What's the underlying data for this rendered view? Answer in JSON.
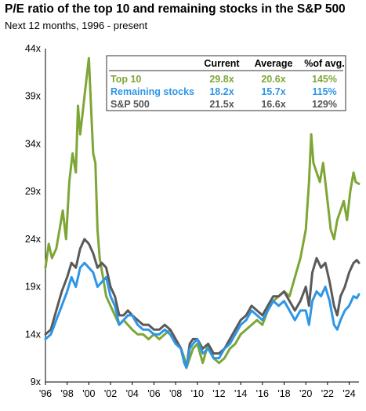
{
  "chart_data": {
    "type": "line",
    "title": "P/E ratio of the top 10 and remaining stocks in the S&P 500",
    "subtitle": "Next 12 months, 1996 - present",
    "xlabel": "",
    "ylabel": "",
    "xlim": [
      1996,
      2024.9
    ],
    "ylim": [
      9,
      44
    ],
    "y_ticks": [
      9,
      14,
      19,
      24,
      29,
      34,
      39,
      44
    ],
    "y_tick_labels": [
      "9x",
      "14x",
      "19x",
      "24x",
      "29x",
      "34x",
      "39x",
      "44x"
    ],
    "x_ticks": [
      1996,
      1998,
      2000,
      2002,
      2004,
      2006,
      2008,
      2010,
      2012,
      2014,
      2016,
      2018,
      2020,
      2022,
      2024
    ],
    "x_tick_labels": [
      "'96",
      "'98",
      "'00",
      "'02",
      "'04",
      "'06",
      "'08",
      "'10",
      "'12",
      "'14",
      "'16",
      "'18",
      "'20",
      "'22",
      "'24"
    ],
    "grid": false,
    "series": [
      {
        "name": "Top 10",
        "color": "#7ea636",
        "x": [
          1996.0,
          1996.3,
          1996.6,
          1997.0,
          1997.3,
          1997.6,
          1997.9,
          1998.2,
          1998.5,
          1998.8,
          1999.0,
          1999.2,
          1999.4,
          1999.6,
          1999.8,
          2000.0,
          2000.2,
          2000.4,
          2000.6,
          2000.8,
          2001.0,
          2001.3,
          2001.6,
          2002.0,
          2002.4,
          2002.8,
          2003.2,
          2003.6,
          2004.0,
          2004.5,
          2005.0,
          2005.5,
          2006.0,
          2006.5,
          2007.0,
          2007.5,
          2008.0,
          2008.5,
          2008.8,
          2009.0,
          2009.3,
          2009.6,
          2010.0,
          2010.5,
          2011.0,
          2011.5,
          2012.0,
          2012.5,
          2013.0,
          2013.5,
          2014.0,
          2014.5,
          2015.0,
          2015.5,
          2016.0,
          2016.5,
          2017.0,
          2017.5,
          2018.0,
          2018.5,
          2019.0,
          2019.5,
          2020.0,
          2020.3,
          2020.5,
          2020.7,
          2021.0,
          2021.3,
          2021.6,
          2022.0,
          2022.3,
          2022.6,
          2022.9,
          2023.2,
          2023.5,
          2023.8,
          2024.1,
          2024.4,
          2024.6,
          2024.9
        ],
        "values": [
          21.0,
          23.5,
          22.0,
          23.0,
          25.0,
          27.0,
          24.0,
          30.0,
          33.0,
          31.0,
          38.0,
          35.0,
          37.0,
          39.0,
          41.0,
          43.0,
          38.0,
          33.0,
          32.0,
          25.0,
          22.0,
          20.0,
          18.0,
          17.0,
          16.0,
          15.0,
          15.5,
          15.0,
          14.5,
          14.0,
          14.0,
          13.5,
          14.0,
          13.5,
          14.0,
          14.5,
          13.5,
          12.5,
          11.5,
          10.5,
          11.5,
          12.5,
          13.0,
          11.0,
          13.0,
          11.5,
          11.0,
          11.5,
          12.5,
          13.0,
          14.0,
          14.5,
          15.0,
          15.5,
          15.0,
          16.5,
          17.5,
          18.0,
          18.5,
          18.0,
          20.0,
          22.0,
          25.0,
          30.0,
          35.0,
          32.0,
          31.0,
          30.0,
          32.0,
          28.0,
          25.0,
          24.0,
          26.0,
          27.0,
          28.0,
          26.0,
          29.0,
          31.0,
          30.0,
          29.8
        ]
      },
      {
        "name": "Remaining stocks",
        "color": "#2e96e6",
        "x": [
          1996.0,
          1996.5,
          1997.0,
          1997.5,
          1998.0,
          1998.4,
          1998.8,
          1999.2,
          1999.6,
          2000.0,
          2000.4,
          2000.8,
          2001.2,
          2001.6,
          2002.0,
          2002.4,
          2002.8,
          2003.2,
          2003.6,
          2004.0,
          2004.5,
          2005.0,
          2005.5,
          2006.0,
          2006.5,
          2007.0,
          2007.5,
          2008.0,
          2008.5,
          2008.8,
          2009.0,
          2009.3,
          2009.6,
          2010.0,
          2010.5,
          2011.0,
          2011.5,
          2012.0,
          2012.5,
          2013.0,
          2013.5,
          2014.0,
          2014.5,
          2015.0,
          2015.5,
          2016.0,
          2016.5,
          2017.0,
          2017.5,
          2018.0,
          2018.5,
          2019.0,
          2019.5,
          2020.0,
          2020.3,
          2020.6,
          2021.0,
          2021.4,
          2021.8,
          2022.2,
          2022.6,
          2022.9,
          2023.2,
          2023.6,
          2024.0,
          2024.4,
          2024.7,
          2024.9
        ],
        "values": [
          13.5,
          14.0,
          15.5,
          17.0,
          18.5,
          20.0,
          19.0,
          21.0,
          21.5,
          21.0,
          20.5,
          19.0,
          19.5,
          20.0,
          18.0,
          17.0,
          15.0,
          15.5,
          16.0,
          16.0,
          15.0,
          14.5,
          14.5,
          14.0,
          14.0,
          14.5,
          14.0,
          13.0,
          12.5,
          11.0,
          10.5,
          12.5,
          13.0,
          13.5,
          12.0,
          12.5,
          11.5,
          11.5,
          12.5,
          13.0,
          14.0,
          15.0,
          15.5,
          16.5,
          16.0,
          15.5,
          16.5,
          17.5,
          17.0,
          17.5,
          16.5,
          15.5,
          16.5,
          16.5,
          15.0,
          17.5,
          18.5,
          18.0,
          19.0,
          17.5,
          15.0,
          14.5,
          15.5,
          16.5,
          17.0,
          18.0,
          17.8,
          18.2
        ]
      },
      {
        "name": "S&P 500",
        "color": "#5a5a5a",
        "x": [
          1996.0,
          1996.5,
          1997.0,
          1997.5,
          1998.0,
          1998.4,
          1998.8,
          1999.2,
          1999.6,
          2000.0,
          2000.4,
          2000.8,
          2001.2,
          2001.6,
          2002.0,
          2002.4,
          2002.8,
          2003.2,
          2003.6,
          2004.0,
          2004.5,
          2005.0,
          2005.5,
          2006.0,
          2006.5,
          2007.0,
          2007.5,
          2008.0,
          2008.5,
          2008.8,
          2009.0,
          2009.3,
          2009.6,
          2010.0,
          2010.5,
          2011.0,
          2011.5,
          2012.0,
          2012.5,
          2013.0,
          2013.5,
          2014.0,
          2014.5,
          2015.0,
          2015.5,
          2016.0,
          2016.5,
          2017.0,
          2017.5,
          2018.0,
          2018.5,
          2019.0,
          2019.5,
          2020.0,
          2020.3,
          2020.6,
          2021.0,
          2021.4,
          2021.8,
          2022.2,
          2022.6,
          2022.9,
          2023.2,
          2023.6,
          2024.0,
          2024.4,
          2024.7,
          2024.9
        ],
        "values": [
          14.0,
          14.5,
          16.5,
          18.5,
          20.0,
          21.5,
          21.0,
          23.0,
          24.0,
          23.5,
          22.5,
          21.0,
          21.5,
          21.0,
          19.0,
          18.0,
          16.0,
          16.0,
          16.5,
          16.0,
          15.5,
          15.0,
          15.0,
          14.5,
          14.5,
          15.0,
          14.5,
          13.5,
          12.5,
          11.0,
          10.5,
          13.0,
          13.5,
          13.5,
          12.5,
          13.0,
          12.0,
          12.0,
          12.5,
          13.5,
          14.5,
          15.5,
          16.0,
          17.0,
          16.5,
          16.0,
          17.0,
          18.0,
          18.0,
          18.5,
          17.5,
          16.5,
          17.5,
          19.0,
          17.0,
          20.5,
          22.0,
          21.0,
          21.5,
          19.5,
          17.0,
          16.0,
          18.0,
          19.0,
          20.5,
          21.5,
          21.8,
          21.5
        ]
      }
    ],
    "legend_table": {
      "placement": "top-right",
      "headers": [
        "",
        "Current",
        "Average",
        "%of avg."
      ],
      "rows": [
        {
          "label": "Top 10",
          "current": "29.8x",
          "average": "20.6x",
          "pct": "145%",
          "color": "#7ea636"
        },
        {
          "label": "Remaining stocks",
          "current": "18.2x",
          "average": "15.7x",
          "pct": "115%",
          "color": "#2e96e6"
        },
        {
          "label": "S&P 500",
          "current": "21.5x",
          "average": "16.6x",
          "pct": "129%",
          "color": "#555555"
        }
      ]
    }
  }
}
